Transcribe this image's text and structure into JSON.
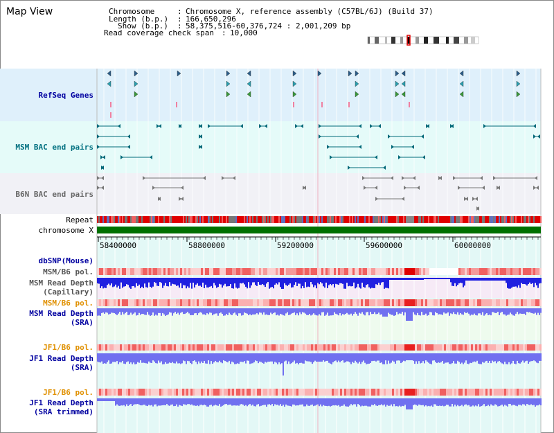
{
  "page": {
    "title": "Map View"
  },
  "header": {
    "chromosome_key": "Chromosome",
    "chromosome_val": "Chromosome X, reference assembly (C57BL/6J) (Build 37)",
    "length_key": "Length (b.p.)",
    "length_val": "166,650,296",
    "show_key": "Show (b.p.)",
    "show_val": "58,375,516-60,376,724 : 2,001,209 bp",
    "span_key": "Read coverage check span",
    "span_val": "10,000"
  },
  "tracks": {
    "refseq": "RefSeq Genes",
    "msm_bac": "MSM BAC end pairs",
    "b6n_bac": "B6N BAC end pairs",
    "repeat": "Repeat",
    "chromosome": "chromosome X"
  },
  "axis": {
    "ticks": [
      "58400000",
      "58800000",
      "59200000",
      "59600000",
      "60000000"
    ]
  },
  "lower_tracks": {
    "dbsnp": "dbSNP(Mouse)",
    "msm_b6_pol_1": "MSM/B6 pol.",
    "msm_read_depth_cap_1": "MSM Read Depth",
    "msm_read_depth_cap_2": "(Capillary)",
    "msm_b6_pol_2": "MSM/B6 pol.",
    "msm_read_depth_sra_1": "MSM Read Depth",
    "msm_read_depth_sra_2": "(SRA)",
    "jf1_b6_pol_1": "JF1/B6 pol.",
    "jf1_read_depth_sra_1": "JF1 Read Depth",
    "jf1_read_depth_sra_2": "(SRA)",
    "jf1_b6_pol_2": "JF1/B6 pol.",
    "jf1_read_depth_trim_1": "JF1 Read Depth",
    "jf1_read_depth_trim_2": "(SRA trimmed)"
  },
  "colors": {
    "refseq_bg": "#dff0fb",
    "bac_bg": "#e5fbf9",
    "b6n_bg": "#f1f1f6",
    "chromosome": "#007000",
    "label_blue": "#0000a0",
    "label_teal": "#007080",
    "label_orange": "#e09000",
    "depth_blue": "#2020e0",
    "depth_light": "#7070f0"
  }
}
